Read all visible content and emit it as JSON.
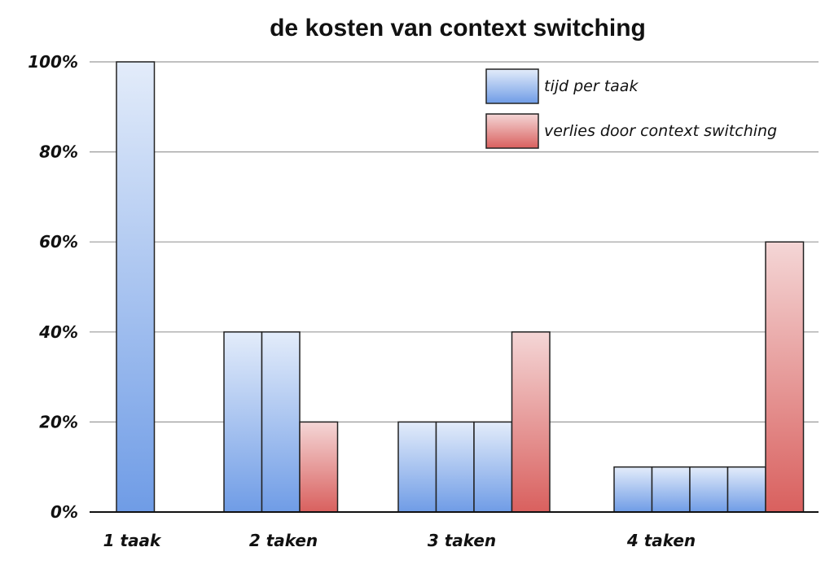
{
  "chart_data": {
    "type": "bar",
    "title": "de kosten van context switching",
    "xlabel": "",
    "ylabel": "",
    "ylim": [
      0,
      100
    ],
    "yticks": [
      "0%",
      "20%",
      "40%",
      "60%",
      "80%",
      "100%"
    ],
    "grid": true,
    "legend_position": "top-right",
    "legend": [
      {
        "label": "tijd per taak",
        "color": "#6f9ce6"
      },
      {
        "label": "verlies door context switching",
        "color": "#d9605e"
      }
    ],
    "categories": [
      "1 taak",
      "2 taken",
      "3 taken",
      "4 taken"
    ],
    "groups": [
      {
        "category": "1 taak",
        "bars": [
          {
            "series": "tijd per taak",
            "value": 100
          }
        ]
      },
      {
        "category": "2 taken",
        "bars": [
          {
            "series": "tijd per taak",
            "value": 40
          },
          {
            "series": "tijd per taak",
            "value": 40
          },
          {
            "series": "verlies door context switching",
            "value": 20
          }
        ]
      },
      {
        "category": "3 taken",
        "bars": [
          {
            "series": "tijd per taak",
            "value": 20
          },
          {
            "series": "tijd per taak",
            "value": 20
          },
          {
            "series": "tijd per taak",
            "value": 20
          },
          {
            "series": "verlies door context switching",
            "value": 40
          }
        ]
      },
      {
        "category": "4 taken",
        "bars": [
          {
            "series": "tijd per taak",
            "value": 10
          },
          {
            "series": "tijd per taak",
            "value": 10
          },
          {
            "series": "tijd per taak",
            "value": 10
          },
          {
            "series": "tijd per taak",
            "value": 10
          },
          {
            "series": "verlies door context switching",
            "value": 60
          }
        ]
      }
    ]
  }
}
